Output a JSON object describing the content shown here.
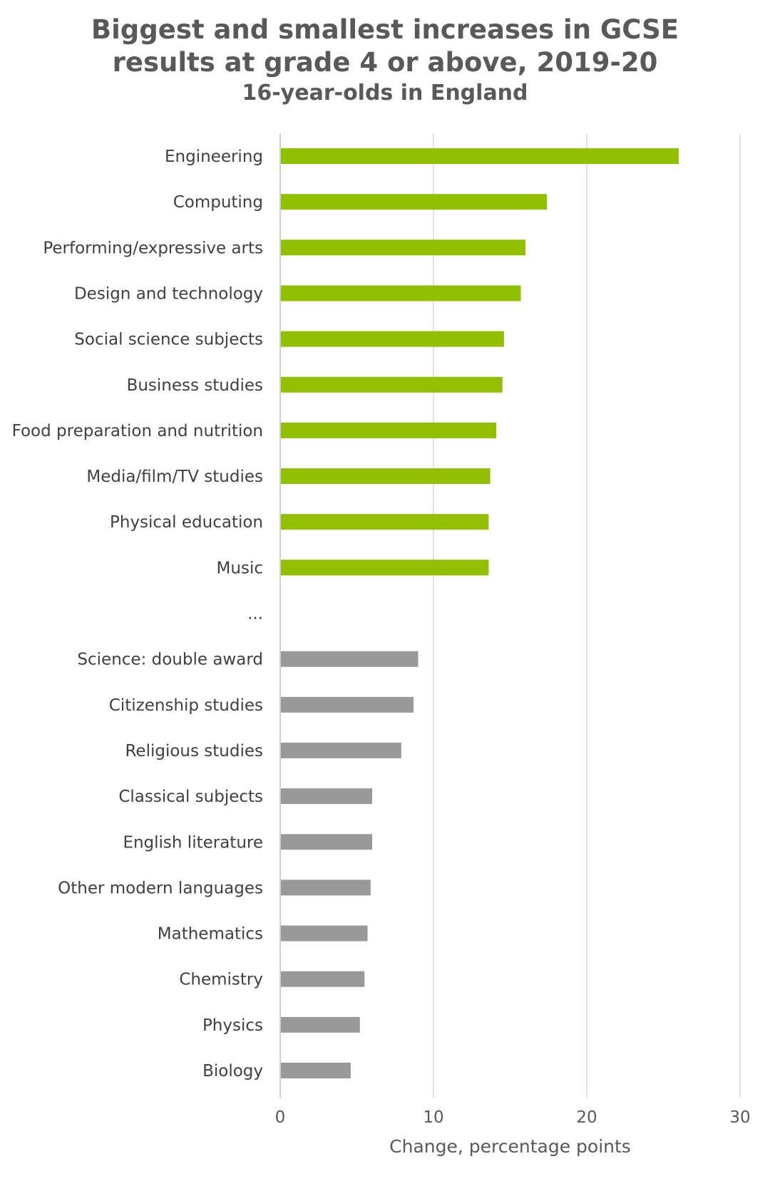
{
  "chart_data": {
    "type": "bar",
    "orientation": "horizontal",
    "title": "Biggest and smallest increases in GCSE results at grade 4 or above, 2019-20",
    "title_lines": [
      "Biggest and smallest increases in GCSE",
      "results at grade 4 or above, 2019-20"
    ],
    "subtitle": "16-year-olds in England",
    "xlabel": "Change, percentage points",
    "ylabel": "",
    "xlim": [
      0,
      30
    ],
    "xticks": [
      "0",
      "10",
      "20",
      "30"
    ],
    "grid": true,
    "legend": "none",
    "colors": {
      "biggest": "#92c000",
      "smallest": "#999999",
      "gridline": "#d9d9d9",
      "axis": "#bfbfbf"
    },
    "categories": [
      "Engineering",
      "Computing",
      "Performing/expressive arts",
      "Design and technology",
      "Social science subjects",
      "Business studies",
      "Food preparation and nutrition",
      "Media/film/TV studies",
      "Physical education",
      "Music",
      "...",
      "Science: double award",
      "Citizenship studies",
      "Religious studies",
      "Classical subjects",
      "English literature",
      "Other modern languages",
      "Mathematics",
      "Chemistry",
      "Physics",
      "Biology"
    ],
    "values": [
      26.0,
      17.4,
      16.0,
      15.7,
      14.6,
      14.5,
      14.1,
      13.7,
      13.6,
      13.6,
      null,
      9.0,
      8.7,
      7.9,
      6.0,
      6.0,
      5.9,
      5.7,
      5.5,
      5.2,
      4.6
    ],
    "groups": [
      "biggest",
      "biggest",
      "biggest",
      "biggest",
      "biggest",
      "biggest",
      "biggest",
      "biggest",
      "biggest",
      "biggest",
      "gap",
      "smallest",
      "smallest",
      "smallest",
      "smallest",
      "smallest",
      "smallest",
      "smallest",
      "smallest",
      "smallest",
      "smallest"
    ]
  }
}
